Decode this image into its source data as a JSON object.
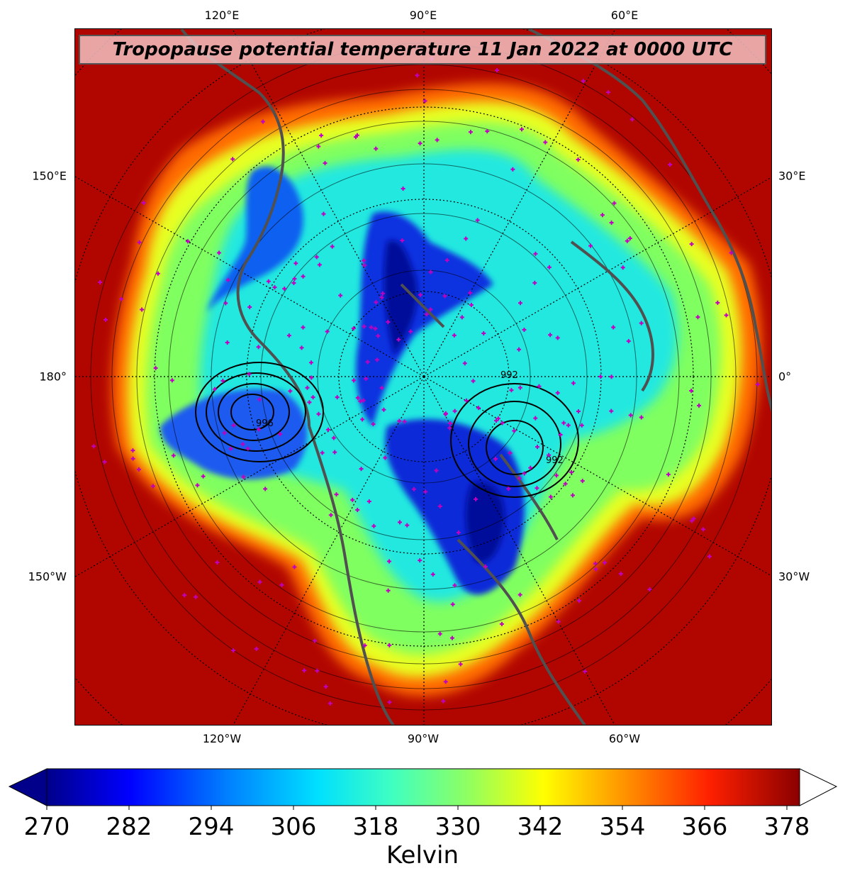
{
  "title": "Tropopause potential temperature 11 Jan 2022 at 0000 UTC",
  "longitude_labels": {
    "top": [
      "120°E",
      "90°E",
      "60°E"
    ],
    "bottom": [
      "120°W",
      "90°W",
      "60°W"
    ],
    "left": [
      "150°E",
      "180°",
      "150°W"
    ],
    "right": [
      "30°E",
      "0°",
      "30°W"
    ]
  },
  "contour_labels": [
    "992",
    "996",
    "992"
  ],
  "colorbar": {
    "ticks": [
      "270",
      "282",
      "294",
      "306",
      "318",
      "330",
      "342",
      "354",
      "366",
      "378"
    ],
    "label": "Kelvin",
    "min": 270,
    "max": 380,
    "extend": "both",
    "colormap": "jet",
    "colors": [
      "#00008b",
      "#0000ff",
      "#0080ff",
      "#00e0ff",
      "#40ffc0",
      "#90ff60",
      "#ffff00",
      "#ff9000",
      "#ff2000",
      "#8b0000"
    ]
  },
  "colors": {
    "coastline": "#505050",
    "station_marker": "#c000c0",
    "gridline": "#000000"
  },
  "icons": {
    "station_marker": "plus-marker"
  }
}
